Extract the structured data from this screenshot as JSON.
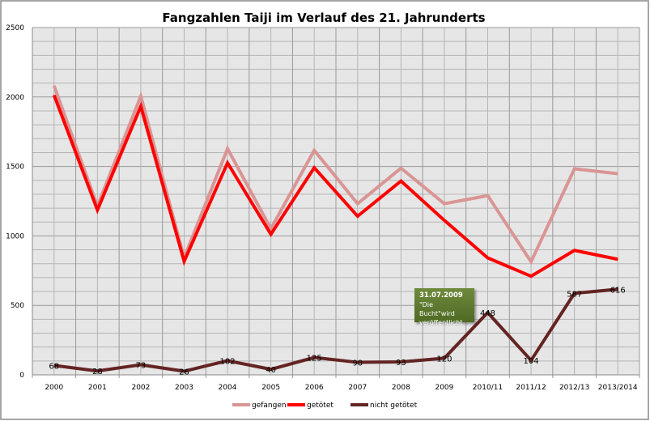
{
  "chart_data": {
    "type": "line",
    "title": "Fangzahlen Taiji im Verlauf des 21. Jahrunderts",
    "categories": [
      "2000",
      "2001",
      "2002",
      "2003",
      "2004",
      "2005",
      "2006",
      "2007",
      "2008",
      "2009",
      "2010/11",
      "2011/12",
      "2012/13",
      "2013/2014"
    ],
    "ylim": [
      0,
      2500
    ],
    "yticks": [
      0,
      500,
      1000,
      1500,
      2000,
      2500
    ],
    "grid": true,
    "legend": "bottom",
    "series": [
      {
        "name": "gefangen",
        "color": "#d99594",
        "values": [
          2081,
          1215,
          2006,
          843,
          1628,
          1052,
          1616,
          1232,
          1488,
          1232,
          1290,
          814,
          1483,
          1448
        ]
      },
      {
        "name": "getötet",
        "color": "#ff0000",
        "values": [
          2013,
          1187,
          1933,
          817,
          1526,
          1012,
          1491,
          1142,
          1395,
          1112,
          842,
          710,
          896,
          832
        ]
      },
      {
        "name": "nicht getötet",
        "color": "#632423",
        "values": [
          68,
          28,
          73,
          26,
          102,
          40,
          125,
          90,
          93,
          120,
          448,
          104,
          587,
          616
        ],
        "data_labels": true
      }
    ],
    "annotation": {
      "date": "31.07.2009",
      "text": "\"Die Bucht\"wird veröffentlicht"
    }
  }
}
